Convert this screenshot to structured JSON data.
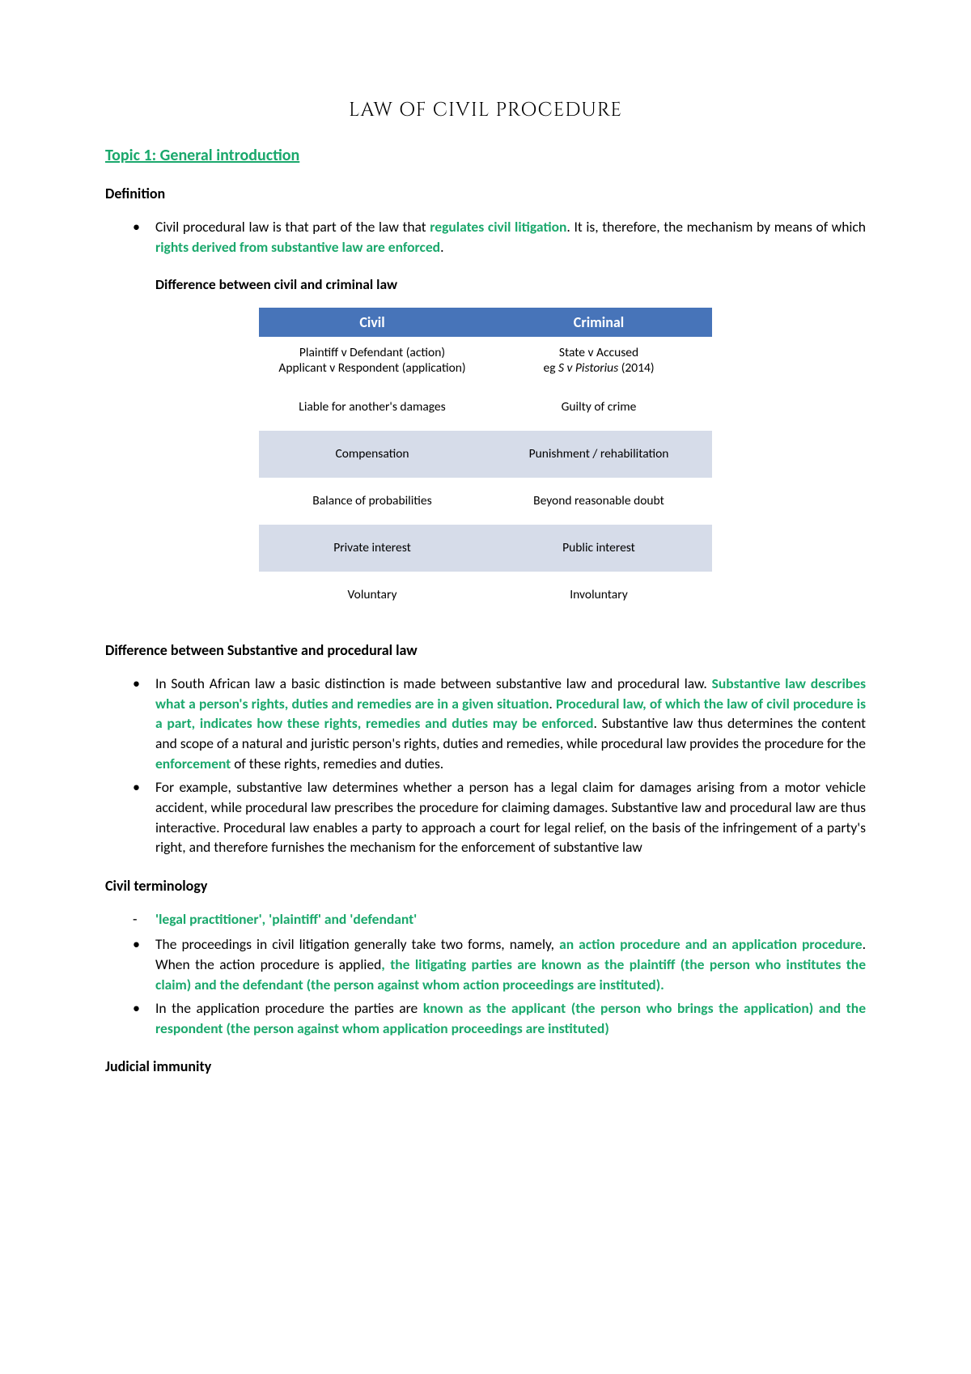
{
  "title": "LAW OF CIVIL PROCEDURE",
  "topic": "Topic 1: General introduction",
  "colors": {
    "highlight": "#1aa86c",
    "table_header_bg": "#4774b9",
    "table_header_fg": "#ffffff",
    "row_even": "#ffffff",
    "row_odd": "#d6dce9",
    "text": "#000000",
    "bg": "#ffffff"
  },
  "sections": {
    "definition": {
      "heading": "Definition",
      "bullet1_pre": "Civil procedural law is that part of the law that ",
      "bullet1_hl1": "regulates civil litigation",
      "bullet1_mid": ". It is, therefore, the mechanism by means of which ",
      "bullet1_hl2": "rights derived from substantive law are enforced",
      "bullet1_post": ".",
      "subheading": "Difference between civil and criminal law"
    },
    "table": {
      "headers": {
        "civil": "Civil",
        "criminal": "Criminal"
      },
      "rows": [
        {
          "civil_line1": "Plaintiff v Defendant (action)",
          "civil_line2": "Applicant v Respondent (application)",
          "criminal_line1": "State v Accused",
          "criminal_line2_pre": "eg ",
          "criminal_line2_italic": "S v Pistorius",
          "criminal_line2_post": " (2014)"
        },
        {
          "civil": "Liable for another's damages",
          "criminal": "Guilty of crime"
        },
        {
          "civil": "Compensation",
          "criminal": "Punishment / rehabilitation"
        },
        {
          "civil": "Balance of probabilities",
          "criminal": "Beyond reasonable doubt"
        },
        {
          "civil": "Private interest",
          "criminal": "Public interest"
        },
        {
          "civil": "Voluntary",
          "criminal": "Involuntary"
        }
      ]
    },
    "substantive": {
      "heading": "Difference between Substantive and procedural law",
      "b1_p1": "In South African law a basic distinction is made between substantive law and procedural law. ",
      "b1_hl1": "Substantive law describes what a person's rights, duties and remedies are in a given situation",
      "b1_p2": ". ",
      "b1_hl2": "Procedural law, of which the law of civil procedure is a part, indicates how these rights, remedies and duties may be enforced",
      "b1_p3": ". Substantive law thus determines the content and scope of a natural and juristic person's rights, duties and remedies, while procedural law provides the procedure for the ",
      "b1_hl3": "enforcement",
      "b1_p4": " of these rights, remedies and duties.",
      "b2": "For example, substantive law determines whether a person has a legal claim for damages arising from a motor vehicle accident, while procedural law prescribes the procedure for claiming damages. Substantive law and procedural law are thus interactive. Procedural law enables a party to approach a court for legal relief, on the basis of the infringement of a party's right, and therefore furnishes the mechanism for the enforcement of substantive law"
    },
    "terminology": {
      "heading": "Civil terminology",
      "dash1": "'legal practitioner', 'plaintiff' and 'defendant'",
      "b1_p1": "The proceedings in civil litigation generally take two forms, namely, ",
      "b1_hl1": "an action procedure and an application procedure",
      "b1_p2": ". When the action procedure is applied",
      "b1_hl2": ", the litigating parties are known as the plaintiff (the person who institutes the claim) and the defendant (the person against whom action proceedings are instituted).",
      "b2_p1": "In the application procedure the parties are ",
      "b2_hl1": "known as the applicant (the person who brings the application) and the respondent (the person against whom application proceedings are instituted)"
    },
    "judicial": {
      "heading": "Judicial immunity"
    }
  }
}
